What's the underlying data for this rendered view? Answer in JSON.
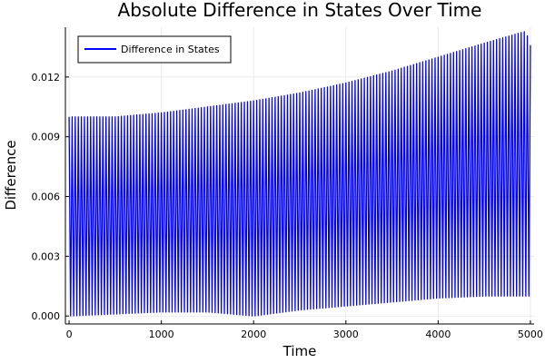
{
  "chart_data": {
    "type": "line",
    "title": "Absolute Difference in States Over Time",
    "xlabel": "Time",
    "ylabel": "Difference",
    "xlim": [
      -40,
      5040
    ],
    "ylim": [
      -0.0004,
      0.0145
    ],
    "xticks": [
      0,
      1000,
      2000,
      3000,
      4000,
      5000
    ],
    "xtick_labels": [
      "0",
      "1000",
      "2000",
      "3000",
      "4000",
      "5000"
    ],
    "yticks": [
      0.0,
      0.003,
      0.006,
      0.009,
      0.012
    ],
    "ytick_labels": [
      "0.000",
      "0.003",
      "0.006",
      "0.009",
      "0.012"
    ],
    "grid": true,
    "legend_position": "top-left",
    "series": [
      {
        "name": "Difference in States",
        "color": "#0000ff",
        "oscillation_count": 150,
        "x_range": [
          0,
          5000
        ],
        "upper_envelope": {
          "x": [
            0,
            500,
            1000,
            1500,
            2000,
            2500,
            3000,
            3500,
            4000,
            4500,
            4950,
            5000
          ],
          "y": [
            0.01,
            0.01,
            0.0102,
            0.0105,
            0.0108,
            0.0112,
            0.0117,
            0.0123,
            0.013,
            0.0137,
            0.0143,
            0.0136
          ]
        },
        "lower_envelope": {
          "x": [
            0,
            500,
            1000,
            1500,
            2000,
            2500,
            3000,
            3500,
            4000,
            4500,
            5000
          ],
          "y": [
            0.0,
            0.0001,
            0.0002,
            0.0002,
            0.0,
            0.0003,
            0.0005,
            0.0007,
            0.0009,
            0.001,
            0.001
          ]
        }
      }
    ]
  }
}
